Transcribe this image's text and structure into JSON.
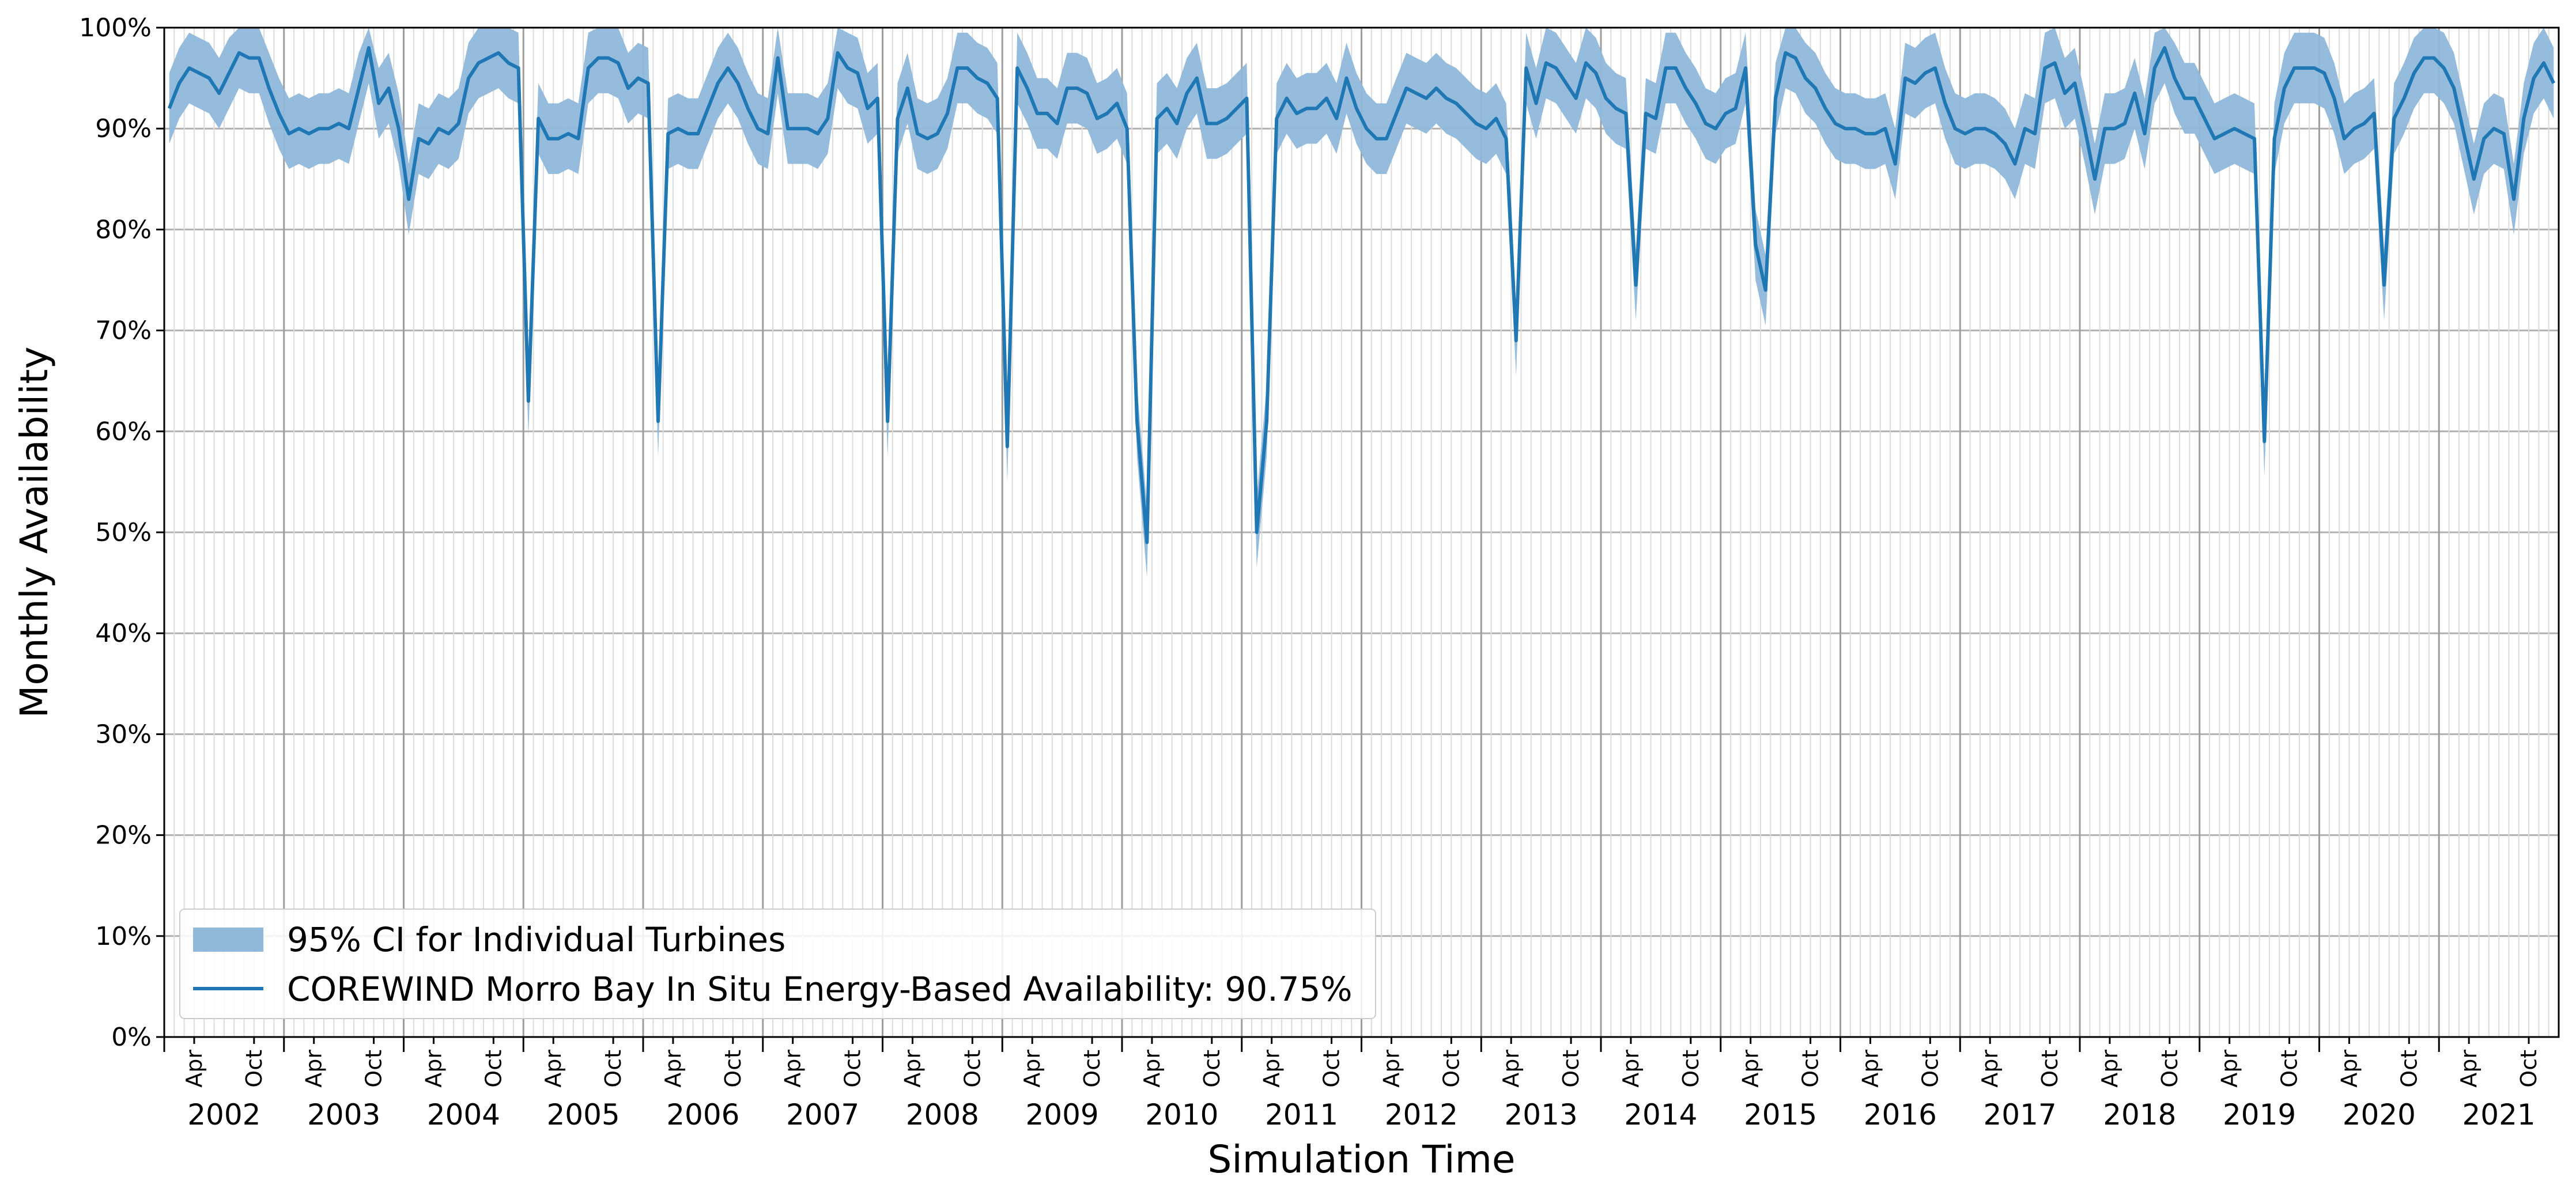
{
  "chart_data": {
    "type": "line",
    "title": "",
    "xlabel": "Simulation Time",
    "ylabel": "Monthly Availability",
    "ylim": [
      0,
      100
    ],
    "y_ticks": [
      "0%",
      "10%",
      "20%",
      "30%",
      "40%",
      "50%",
      "60%",
      "70%",
      "80%",
      "90%",
      "100%"
    ],
    "x_range": [
      "2002-01",
      "2021-12"
    ],
    "x_month_ticks": [
      "Apr",
      "Oct"
    ],
    "x_year_ticks": [
      "2002",
      "2003",
      "2004",
      "2005",
      "2006",
      "2007",
      "2008",
      "2009",
      "2010",
      "2011",
      "2012",
      "2013",
      "2014",
      "2015",
      "2016",
      "2017",
      "2018",
      "2019",
      "2020",
      "2021"
    ],
    "grid": true,
    "legend_position": "lower-left",
    "colors": {
      "line": "#1f77b4",
      "band": "#8fb8da"
    },
    "series": [
      {
        "name": "COREWIND Morro Bay In Situ Energy-Based Availability: 90.75%",
        "kind": "line",
        "values": [
          [
            92,
            94.5,
            96,
            95.5,
            95,
            93.5,
            95.5,
            97.5,
            97,
            97,
            94,
            91.5
          ],
          [
            89.5,
            90,
            89.5,
            90,
            90,
            90.5,
            90,
            94,
            98,
            92.5,
            94,
            90
          ],
          [
            83,
            89,
            88.5,
            90,
            89.5,
            90.5,
            95,
            96.5,
            97,
            97.5,
            96.5,
            96
          ],
          [
            63,
            91,
            89,
            89,
            89.5,
            89,
            96,
            97,
            97,
            96.5,
            94,
            95
          ],
          [
            94.5,
            61,
            89.5,
            90,
            89.5,
            89.5,
            92,
            94.5,
            96,
            94.5,
            92,
            90
          ],
          [
            89.5,
            97,
            90,
            90,
            90,
            89.5,
            91,
            97.5,
            96,
            95.5,
            92,
            93
          ],
          [
            61,
            91,
            94,
            89.5,
            89,
            89.5,
            91.5,
            96,
            96,
            95,
            94.5,
            93
          ],
          [
            58.5,
            96,
            94,
            91.5,
            91.5,
            90.5,
            94,
            94,
            93.5,
            91,
            91.5,
            92.5
          ],
          [
            90,
            61,
            49,
            91,
            92,
            90.5,
            93.5,
            95,
            90.5,
            90.5,
            91,
            92
          ],
          [
            93,
            50,
            61,
            91,
            93,
            91.5,
            92,
            92,
            93,
            91,
            95,
            92
          ],
          [
            90,
            89,
            89,
            91.5,
            94,
            93.5,
            93,
            94,
            93,
            92.5,
            91.5,
            90.5
          ],
          [
            90,
            91,
            89,
            69,
            96,
            92.5,
            96.5,
            96,
            94.5,
            93,
            96.5,
            95.5
          ],
          [
            93,
            92,
            91.5,
            74.5,
            91.5,
            91,
            96,
            96,
            94,
            92.5,
            90.5,
            90
          ],
          [
            91.5,
            92,
            96,
            78.5,
            74,
            93,
            97.5,
            97,
            95,
            94,
            92,
            90.5
          ],
          [
            90,
            90,
            89.5,
            89.5,
            90,
            86.5,
            95,
            94.5,
            95.5,
            96,
            92.5,
            90
          ],
          [
            89.5,
            90,
            90,
            89.5,
            88.5,
            86.5,
            90,
            89.5,
            96,
            96.5,
            93.5,
            94.5
          ],
          [
            90,
            85,
            90,
            90,
            90.5,
            93.5,
            89.5,
            96,
            98,
            95,
            93,
            93
          ],
          [
            91,
            89,
            89.5,
            90,
            89.5,
            89,
            59,
            89,
            94,
            96,
            96,
            96
          ],
          [
            95.5,
            93,
            89,
            90,
            90.5,
            91.5,
            74.5,
            91,
            93,
            95.5,
            97,
            97
          ],
          [
            96,
            94,
            89.5,
            85,
            89,
            90,
            89.5,
            83,
            91,
            95,
            96.5,
            94.5
          ]
        ]
      },
      {
        "name": "95% CI for Individual Turbines",
        "kind": "band",
        "note_series_relation": "lower = line - 3.5, upper = line + 3.5 (clipped at 100)",
        "half_width": 3.5
      }
    ],
    "legend": [
      {
        "label": "95% CI for Individual Turbines",
        "kind": "band"
      },
      {
        "label": "COREWIND Morro Bay In Situ Energy-Based Availability: 90.75%",
        "kind": "line"
      }
    ]
  }
}
